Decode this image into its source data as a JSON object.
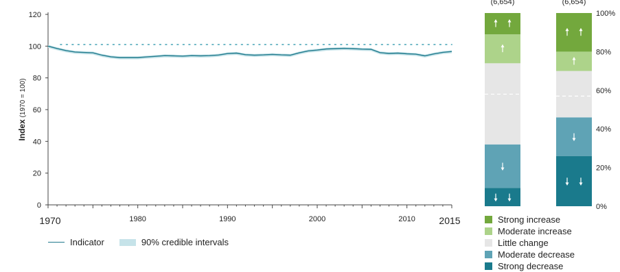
{
  "chart_data": [
    {
      "type": "line",
      "ylabel_main": "Index",
      "ylabel_sub": "(1970 = 100)",
      "xlim": [
        1970,
        2015
      ],
      "ylim": [
        0,
        120
      ],
      "y_ticks": [
        0,
        20,
        40,
        60,
        80,
        100,
        120
      ],
      "x_ticks": [
        {
          "value": 1970,
          "label": "1970",
          "big": true
        },
        {
          "value": 1980,
          "label": "1980",
          "big": false
        },
        {
          "value": 1990,
          "label": "1990",
          "big": false
        },
        {
          "value": 2000,
          "label": "2000",
          "big": false
        },
        {
          "value": 2010,
          "label": "2010",
          "big": false
        },
        {
          "value": 2015,
          "label": "2015",
          "big": true
        }
      ],
      "reference_line": 101,
      "series": [
        {
          "name": "Indicator",
          "color": "#1f7a8c",
          "x": [
            1970,
            1971,
            1972,
            1973,
            1974,
            1975,
            1976,
            1977,
            1978,
            1979,
            1980,
            1981,
            1982,
            1983,
            1984,
            1985,
            1986,
            1987,
            1988,
            1989,
            1990,
            1991,
            1992,
            1993,
            1994,
            1995,
            1996,
            1997,
            1998,
            1999,
            2000,
            2001,
            2002,
            2003,
            2004,
            2005,
            2006,
            2007,
            2008,
            2009,
            2010,
            2011,
            2012,
            2013,
            2014,
            2015
          ],
          "y": [
            100,
            98.5,
            97.2,
            96.3,
            96,
            95.8,
            94.3,
            93.3,
            92.8,
            92.8,
            92.8,
            93.2,
            93.6,
            94,
            93.9,
            93.7,
            94,
            93.9,
            94,
            94.4,
            95.3,
            95.6,
            94.6,
            94.3,
            94.5,
            94.8,
            94.5,
            94.3,
            95.8,
            97,
            97.5,
            98.2,
            98.4,
            98.6,
            98.4,
            98.1,
            98,
            95.9,
            95.4,
            95.6,
            95.2,
            94.9,
            93.9,
            95.1,
            96.1,
            96.6
          ]
        }
      ],
      "ci_name": "90% credible intervals",
      "ci_color": "#c6e3e9",
      "ci_lower_offset": 1.1,
      "ci_upper_offset": 0.8
    },
    {
      "type": "bar",
      "stacked": true,
      "ylim": [
        0,
        100
      ],
      "y_ticks": [
        "0%",
        "20%",
        "40%",
        "60%",
        "80%",
        "100%"
      ],
      "bars": [
        {
          "label": "(6,654)",
          "segments": [
            9.5,
            22.5,
            42,
            15,
            11
          ],
          "dash_at": 58
        },
        {
          "label": "(6,654)",
          "segments": [
            26,
            20,
            24,
            10,
            20
          ],
          "dash_at": 57
        }
      ],
      "categories": [
        "Strong decrease",
        "Moderate decrease",
        "Little change",
        "Moderate increase",
        "Strong increase"
      ],
      "colors": [
        "#1a7a8c",
        "#5fa3b5",
        "#e6e6e6",
        "#add38a",
        "#73a83d"
      ],
      "legend_order": [
        "Strong increase",
        "Moderate increase",
        "Little change",
        "Moderate decrease",
        "Strong decrease"
      ]
    }
  ]
}
